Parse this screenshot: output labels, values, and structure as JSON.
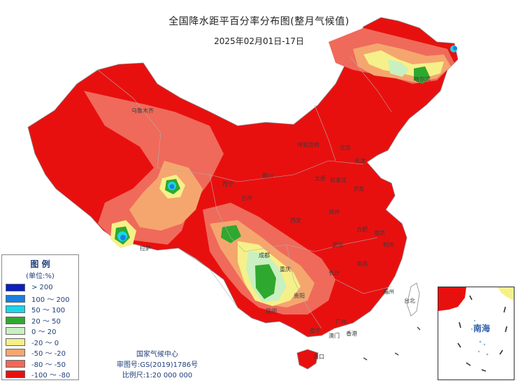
{
  "title": "全国降水距平百分率分布图(整月气候值)",
  "subtitle": "2025年02月01日-17日",
  "legend": {
    "title": "图 例",
    "unit": "(单位:%)",
    "items": [
      {
        "label": "> 200",
        "color": "#0a1fc4"
      },
      {
        "label": "100 ～ 200",
        "color": "#1a7fe0"
      },
      {
        "label": "50 ～ 100",
        "color": "#1ad6e8"
      },
      {
        "label": "20 ～ 50",
        "color": "#2fa82f"
      },
      {
        "label": "0 ～ 20",
        "color": "#c8f0c0"
      },
      {
        "label": "-20 ～ 0",
        "color": "#f6f08a"
      },
      {
        "label": "-50 ～ -20",
        "color": "#f5a66e"
      },
      {
        "label": "-80 ～ -50",
        "color": "#ef6a5a"
      },
      {
        "label": "-100 ～ -80",
        "color": "#e8100f"
      }
    ]
  },
  "credits": {
    "org": "国家气候中心",
    "approval": "审图号:GS(2019)1786号",
    "scale": "比例尺:1:20 000 000"
  },
  "inset": {
    "label": "南海"
  },
  "cities": [
    {
      "name": "乌鲁木齐",
      "id": "urumqi"
    },
    {
      "name": "呼和浩特",
      "id": "hohhot"
    },
    {
      "name": "北京",
      "id": "beijing"
    },
    {
      "name": "天津",
      "id": "tianjin"
    },
    {
      "name": "银川",
      "id": "yinchuan"
    },
    {
      "name": "太原",
      "id": "taiyuan"
    },
    {
      "name": "石家庄",
      "id": "shijiazhuang"
    },
    {
      "name": "济南",
      "id": "jinan"
    },
    {
      "name": "西宁",
      "id": "xining"
    },
    {
      "name": "兰州",
      "id": "lanzhou"
    },
    {
      "name": "郑州",
      "id": "zhengzhou"
    },
    {
      "name": "西安",
      "id": "xian"
    },
    {
      "name": "合肥",
      "id": "hefei"
    },
    {
      "name": "南京",
      "id": "nanjing"
    },
    {
      "name": "武汉",
      "id": "wuhan"
    },
    {
      "name": "杭州",
      "id": "hangzhou"
    },
    {
      "name": "拉萨",
      "id": "lhasa"
    },
    {
      "name": "成都",
      "id": "chengdu"
    },
    {
      "name": "重庆",
      "id": "chongqing"
    },
    {
      "name": "长沙",
      "id": "changsha"
    },
    {
      "name": "南昌",
      "id": "nanchang"
    },
    {
      "name": "福州",
      "id": "fuzhou"
    },
    {
      "name": "贵阳",
      "id": "guiyang"
    },
    {
      "name": "昆明",
      "id": "kunming"
    },
    {
      "name": "南宁",
      "id": "nanning"
    },
    {
      "name": "广州",
      "id": "guangzhou"
    },
    {
      "name": "香港",
      "id": "hongkong"
    },
    {
      "name": "澳门",
      "id": "macau"
    },
    {
      "name": "台北",
      "id": "taipei"
    },
    {
      "name": "海口",
      "id": "haikou"
    },
    {
      "name": "哈尔滨",
      "id": "harbin"
    }
  ]
}
